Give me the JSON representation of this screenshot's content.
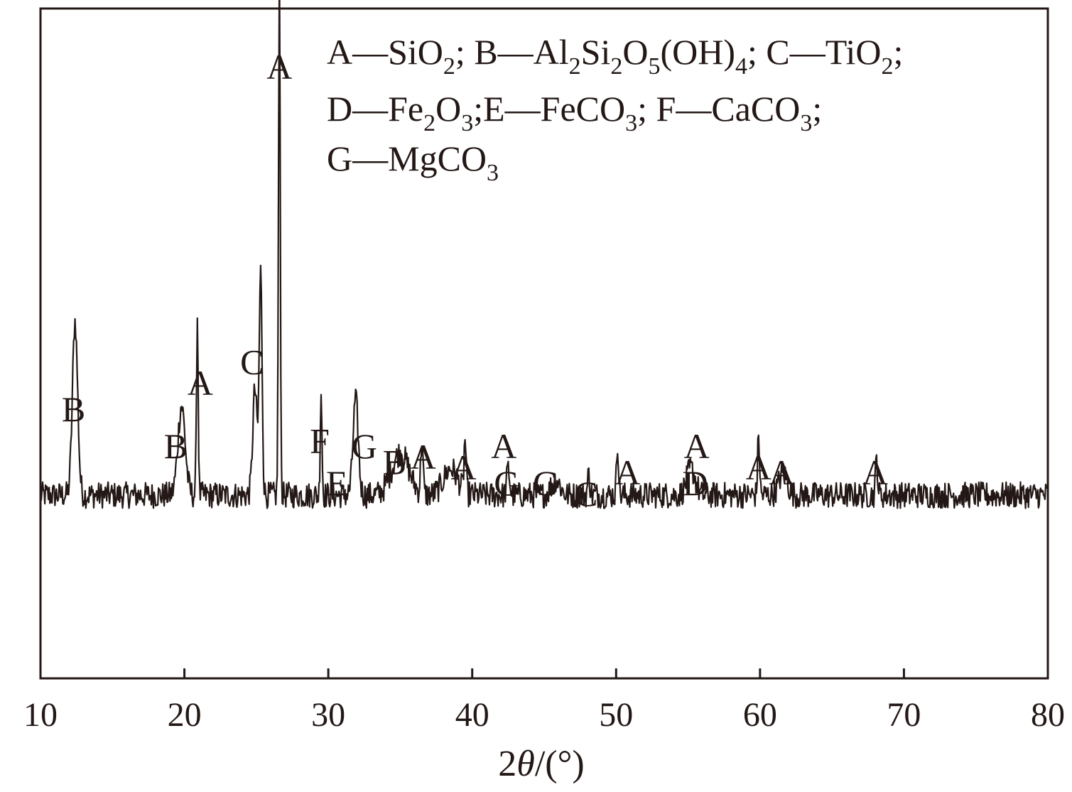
{
  "chart_data": {
    "type": "line",
    "xlabel": "2θ/(°)",
    "xlabel_prefix": "2",
    "xlabel_var": "θ",
    "xlabel_unit": "/(°)",
    "xlim": [
      10,
      80
    ],
    "x_ticks": [
      "10",
      "20",
      "30",
      "40",
      "50",
      "60",
      "70",
      "80"
    ],
    "ylabel": "",
    "y_ticks": [],
    "grid": false,
    "line_color": "#231815",
    "legend": {
      "lines": [
        [
          {
            "text": "A—SiO"
          },
          {
            "text": "2",
            "sub": true
          },
          {
            "text": "; B—Al"
          },
          {
            "text": "2",
            "sub": true
          },
          {
            "text": "Si"
          },
          {
            "text": "2",
            "sub": true
          },
          {
            "text": "O"
          },
          {
            "text": "5",
            "sub": true
          },
          {
            "text": "(OH)"
          },
          {
            "text": "4",
            "sub": true
          },
          {
            "text": "; C—TiO"
          },
          {
            "text": "2",
            "sub": true
          },
          {
            "text": ";"
          }
        ],
        [
          {
            "text": "D—Fe"
          },
          {
            "text": "2",
            "sub": true
          },
          {
            "text": "O"
          },
          {
            "text": "3",
            "sub": true
          },
          {
            "text": ";E—FeCO"
          },
          {
            "text": "3",
            "sub": true
          },
          {
            "text": "; F—CaCO"
          },
          {
            "text": "3",
            "sub": true
          },
          {
            "text": ";"
          }
        ],
        [
          {
            "text": "G—MgCO"
          },
          {
            "text": "3",
            "sub": true
          }
        ]
      ]
    },
    "series": [
      {
        "baseline": 0.26,
        "peaks": [
          {
            "x": 12.4,
            "h": 0.33,
            "w": 0.18
          },
          {
            "x": 19.8,
            "h": 0.17,
            "w": 0.25
          },
          {
            "x": 20.9,
            "h": 0.34,
            "w": 0.06
          },
          {
            "x": 24.9,
            "h": 0.2,
            "w": 0.15
          },
          {
            "x": 25.3,
            "h": 0.42,
            "w": 0.1
          },
          {
            "x": 26.6,
            "h": 1.0,
            "w": 0.06
          },
          {
            "x": 29.5,
            "h": 0.2,
            "w": 0.06
          },
          {
            "x": 31.9,
            "h": 0.18,
            "w": 0.18
          },
          {
            "x": 35.0,
            "h": 0.08,
            "w": 0.6
          },
          {
            "x": 36.5,
            "h": 0.1,
            "w": 0.08
          },
          {
            "x": 38.5,
            "h": 0.05,
            "w": 0.5
          },
          {
            "x": 39.5,
            "h": 0.1,
            "w": 0.07
          },
          {
            "x": 42.5,
            "h": 0.05,
            "w": 0.1
          },
          {
            "x": 45.8,
            "h": 0.03,
            "w": 0.3
          },
          {
            "x": 48.1,
            "h": 0.04,
            "w": 0.08
          },
          {
            "x": 50.1,
            "h": 0.1,
            "w": 0.07
          },
          {
            "x": 55.2,
            "h": 0.05,
            "w": 0.3
          },
          {
            "x": 59.9,
            "h": 0.11,
            "w": 0.07
          },
          {
            "x": 61.6,
            "h": 0.04,
            "w": 0.3
          },
          {
            "x": 68.1,
            "h": 0.07,
            "w": 0.07
          }
        ]
      }
    ],
    "annotations": [
      {
        "text": "B",
        "x": 12.3,
        "level": 0.4
      },
      {
        "text": "B",
        "x": 19.4,
        "level": 0.33
      },
      {
        "text": "A",
        "x": 21.1,
        "level": 0.45
      },
      {
        "text": "C",
        "x": 24.7,
        "level": 0.49
      },
      {
        "text": "A",
        "x": 26.6,
        "level": 1.05
      },
      {
        "text": "F",
        "x": 29.4,
        "level": 0.34
      },
      {
        "text": "E",
        "x": 30.6,
        "level": 0.26
      },
      {
        "text": "G",
        "x": 32.5,
        "level": 0.33
      },
      {
        "text": "B",
        "x": 34.6,
        "level": 0.3
      },
      {
        "text": "A",
        "x": 36.6,
        "level": 0.31
      },
      {
        "text": "A",
        "x": 39.4,
        "level": 0.29
      },
      {
        "text": "A",
        "x": 42.2,
        "level": 0.33
      },
      {
        "text": "G",
        "x": 42.4,
        "level": 0.26
      },
      {
        "text": "G",
        "x": 45.1,
        "level": 0.26
      },
      {
        "text": "C",
        "x": 47.9,
        "level": 0.24
      },
      {
        "text": "A",
        "x": 50.8,
        "level": 0.28
      },
      {
        "text": "A",
        "x": 55.6,
        "level": 0.33
      },
      {
        "text": "D",
        "x": 55.5,
        "level": 0.26
      },
      {
        "text": "A",
        "x": 59.9,
        "level": 0.29
      },
      {
        "text": "A",
        "x": 61.5,
        "level": 0.28
      },
      {
        "text": "A",
        "x": 68.0,
        "level": 0.28
      }
    ]
  }
}
